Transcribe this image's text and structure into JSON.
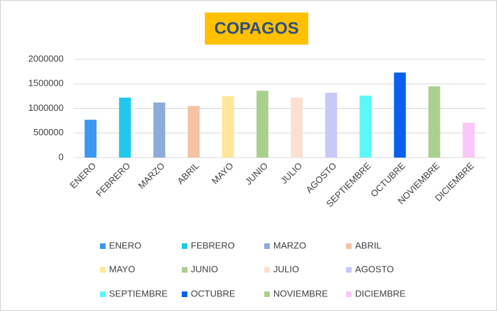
{
  "chart_data": {
    "type": "bar",
    "title": "COPAGOS",
    "categories": [
      "ENERO",
      "FEBRERO",
      "MARZO",
      "ABRIL",
      "MAYO",
      "JUNIO",
      "JULIO",
      "AGOSTO",
      "SEPTIEMBRE",
      "OCTUBRE",
      "NOVIEMBRE",
      "DICIEMBRE"
    ],
    "values": [
      770000,
      1220000,
      1120000,
      1050000,
      1250000,
      1360000,
      1220000,
      1320000,
      1260000,
      1730000,
      1450000,
      710000
    ],
    "colors": [
      "#3c97f0",
      "#1fc9ee",
      "#8eaadb",
      "#f4c2a4",
      "#ffe699",
      "#a9d18e",
      "#fbe0d0",
      "#c9c9f8",
      "#5cf7f7",
      "#0a5ff0",
      "#a9d18e",
      "#fbc6f8"
    ],
    "ylim": [
      0,
      2000000
    ],
    "yticks": [
      0,
      500000,
      1000000,
      1500000,
      2000000
    ],
    "grid": true,
    "legend": "bottom"
  }
}
